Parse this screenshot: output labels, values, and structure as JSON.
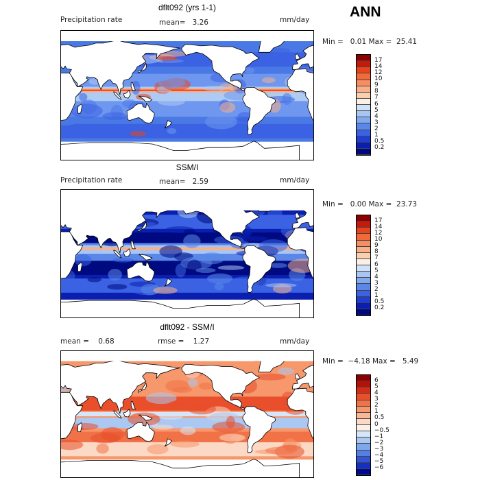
{
  "season": "ANN",
  "panels": [
    {
      "title": "dflt092 (yrs 1-1)",
      "left_label": "Precipitation rate",
      "mid_label": "mean=   3.26",
      "units": "mm/day",
      "stats": "Min =   0.01 Max =  25.41",
      "colorbar": [
        "17",
        "14",
        "12",
        "10",
        "9",
        "8",
        "7",
        "6",
        "5",
        "4",
        "3",
        "2",
        "1",
        "0.5",
        "0.2"
      ],
      "colors": [
        "#8b0000",
        "#c41a0c",
        "#e8431c",
        "#f06a3a",
        "#f58e62",
        "#f7b08a",
        "#f9cfae",
        "#fbf0e6",
        "#cfe0f7",
        "#a9c6f3",
        "#82a9ee",
        "#5a87e8",
        "#3a62e2",
        "#1f3ed6",
        "#0a1fb0",
        "#000a80"
      ],
      "map_style": "model"
    },
    {
      "title": "SSM/I",
      "left_label": "Precipitation rate",
      "mid_label": "mean=   2.59",
      "units": "mm/day",
      "stats": "Min =   0.00 Max =  23.73",
      "colorbar": [
        "17",
        "14",
        "12",
        "10",
        "9",
        "8",
        "7",
        "6",
        "5",
        "4",
        "3",
        "2",
        "1",
        "0.5",
        "0.2"
      ],
      "colors": [
        "#8b0000",
        "#c41a0c",
        "#e8431c",
        "#f06a3a",
        "#f58e62",
        "#f7b08a",
        "#f9cfae",
        "#fbf0e6",
        "#cfe0f7",
        "#a9c6f3",
        "#82a9ee",
        "#5a87e8",
        "#3a62e2",
        "#1f3ed6",
        "#0a1fb0",
        "#000a80"
      ],
      "map_style": "obs"
    },
    {
      "title": "dflt092 - SSM/I",
      "left_label": "mean =    0.68",
      "mid_label": "rmse =    1.27",
      "units": "mm/day",
      "stats": "Min =  −4.18 Max =   5.49",
      "colorbar": [
        "6",
        "5",
        "4",
        "3",
        "2",
        "1",
        "0.5",
        "0",
        "−0.5",
        "−1",
        "−2",
        "−3",
        "−4",
        "−5",
        "−6"
      ],
      "colors": [
        "#8b0000",
        "#b3120a",
        "#d42c16",
        "#e84f2a",
        "#f17247",
        "#f7976c",
        "#f9b996",
        "#fbd9c4",
        "#fbf0e8",
        "#d6e5f8",
        "#aac8f2",
        "#7ea8ec",
        "#557fe4",
        "#3055d8",
        "#1530c0",
        "#000a90"
      ],
      "map_style": "diff"
    }
  ]
}
